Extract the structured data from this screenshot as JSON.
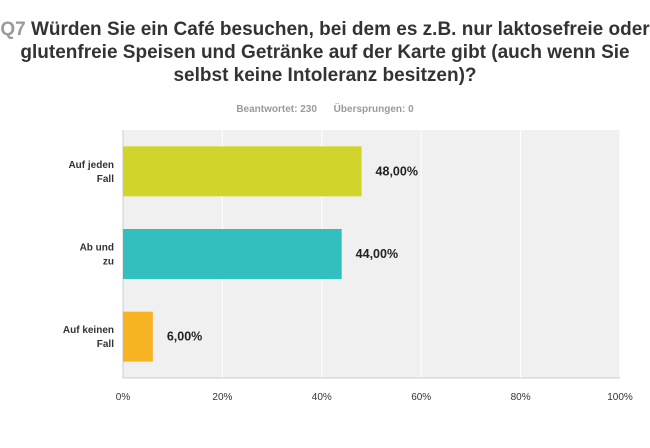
{
  "header": {
    "question_number": "Q7",
    "question_text": "Würden Sie ein Café besuchen, bei dem es z.B. nur laktosefreie oder glutenfreie Speisen und Getränke auf der Karte gibt (auch wenn Sie selbst keine Intoleranz besitzen)?",
    "answered": "Beantwortet: 230",
    "skipped": "Übersprungen: 0"
  },
  "chart_data": {
    "type": "bar",
    "orientation": "horizontal",
    "categories": [
      "Auf jeden Fall",
      "Ab und zu",
      "Auf keinen Fall"
    ],
    "values": [
      48,
      44,
      6
    ],
    "data_labels": [
      "48,00%",
      "44,00%",
      "6,00%"
    ],
    "colors": [
      "#d1d42a",
      "#34bfbf",
      "#f8b323"
    ],
    "xlim": [
      0,
      100
    ],
    "x_ticks": [
      "0%",
      "20%",
      "40%",
      "60%",
      "80%",
      "100%"
    ],
    "grid": true,
    "plot_background": "#f0f0f0"
  }
}
